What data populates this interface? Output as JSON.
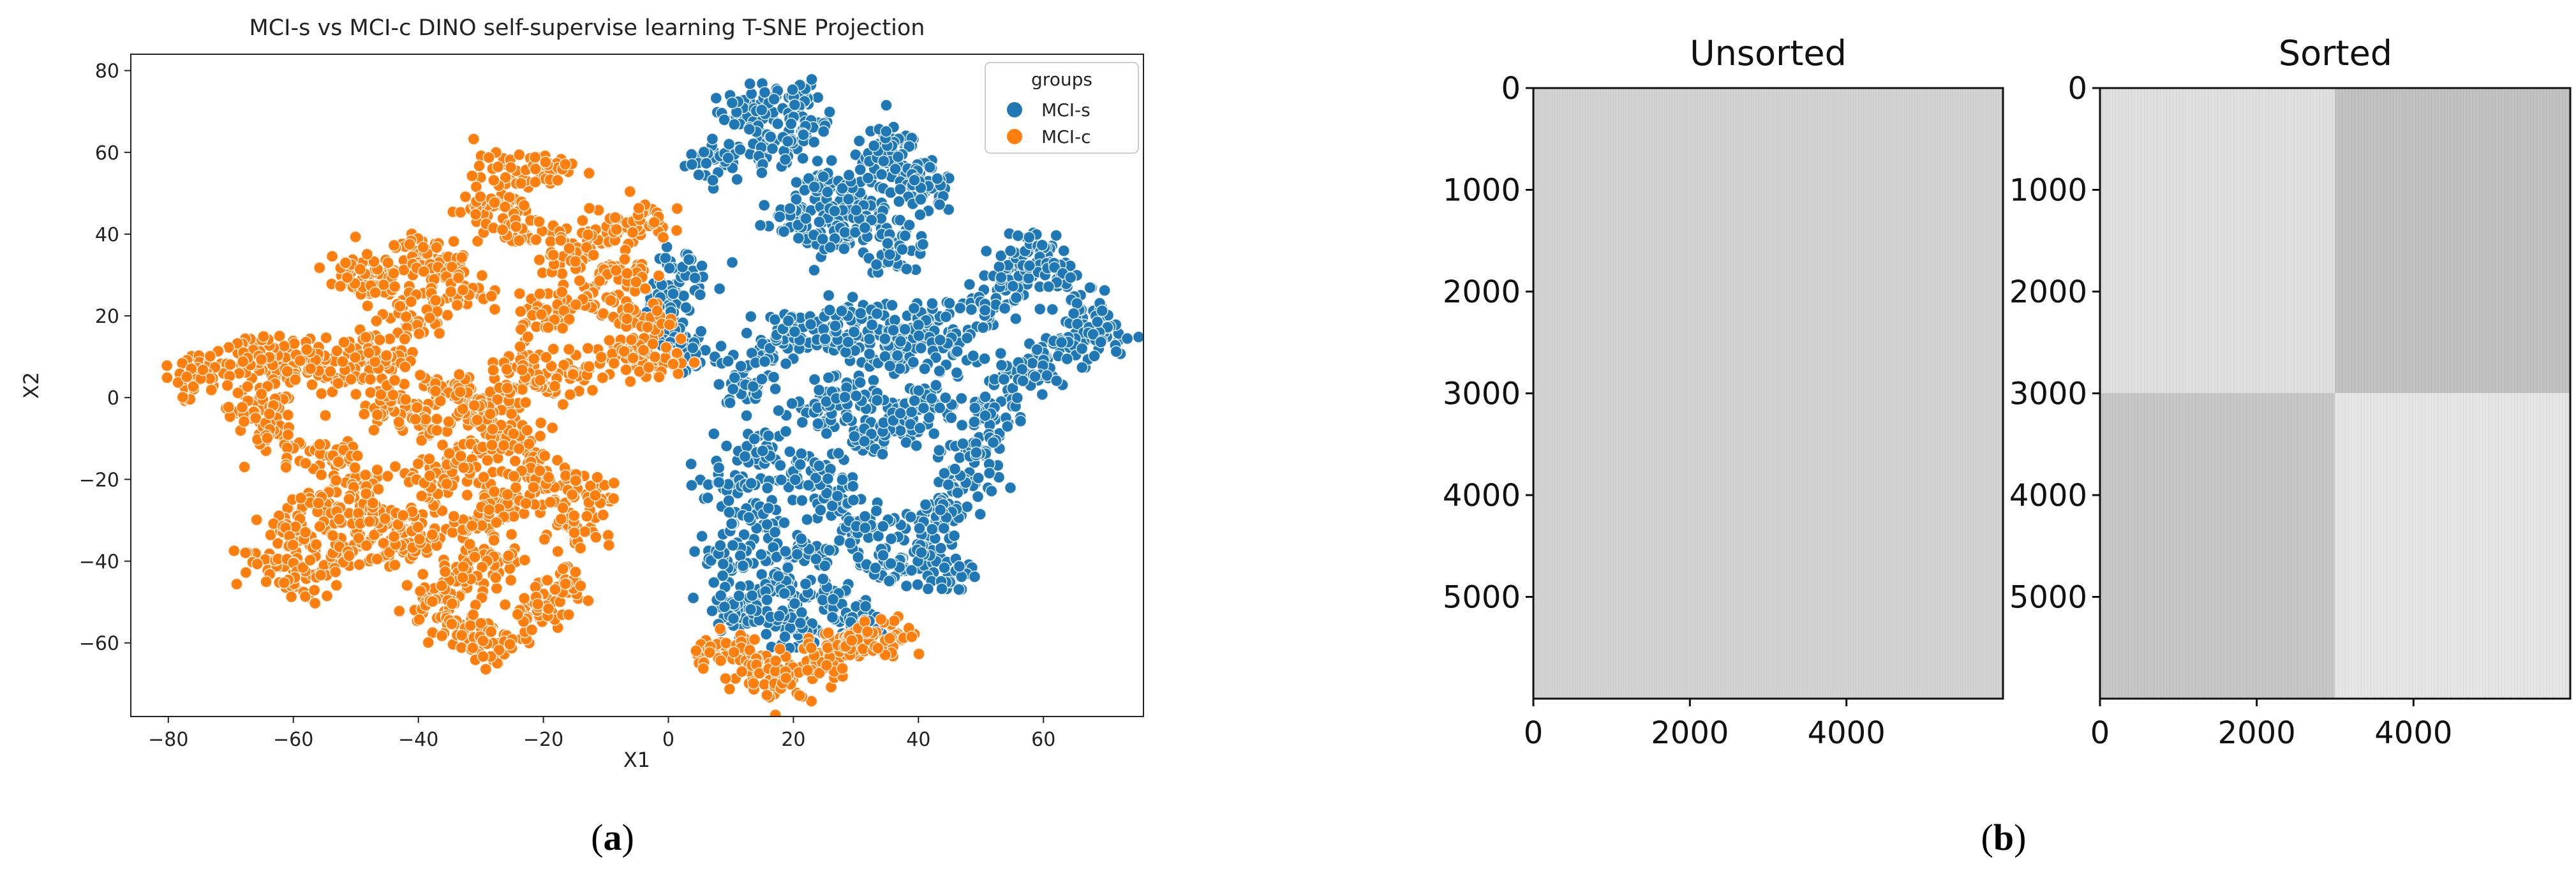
{
  "panel_a": {
    "label": "a",
    "chart_data": {
      "type": "scatter",
      "title": "MCI-s vs MCI-c DINO self-supervise learning T-SNE Projection",
      "xlabel": "X1",
      "ylabel": "X2",
      "xlim": [
        -86,
        76
      ],
      "ylim": [
        -78,
        84
      ],
      "xticks": [
        -80,
        -60,
        -40,
        -20,
        0,
        20,
        40,
        60
      ],
      "yticks": [
        -60,
        -40,
        -20,
        0,
        20,
        40,
        60,
        80
      ],
      "xtick_labels": [
        "−80",
        "−60",
        "−40",
        "−20",
        "0",
        "20",
        "40",
        "60"
      ],
      "ytick_labels": [
        "−60",
        "−40",
        "−20",
        "0",
        "20",
        "40",
        "60",
        "80"
      ],
      "legend": {
        "title": "groups",
        "placement": "top-right"
      },
      "series": [
        {
          "name": "MCI-s",
          "color": "#1f77b4",
          "cluster_centers": [
            [
              8,
              58
            ],
            [
              13,
              70
            ],
            [
              16,
              60
            ],
            [
              19,
              74
            ],
            [
              22,
              66
            ],
            [
              24,
              52
            ],
            [
              20,
              44
            ],
            [
              26,
              40
            ],
            [
              30,
              47
            ],
            [
              33,
              56
            ],
            [
              36,
              63
            ],
            [
              38,
              54
            ],
            [
              41,
              50
            ],
            [
              34,
              43
            ],
            [
              37,
              36
            ],
            [
              2,
              31
            ],
            [
              -1,
              24
            ],
            [
              1,
              14
            ],
            [
              3,
              10
            ],
            [
              13,
              3
            ],
            [
              16,
              12
            ],
            [
              20,
              17
            ],
            [
              26,
              14
            ],
            [
              30,
              20
            ],
            [
              34,
              10
            ],
            [
              38,
              14
            ],
            [
              42,
              19
            ],
            [
              45,
              12
            ],
            [
              50,
              22
            ],
            [
              55,
              30
            ],
            [
              59,
              36
            ],
            [
              63,
              29
            ],
            [
              66,
              19
            ],
            [
              70,
              15
            ],
            [
              61,
              11
            ],
            [
              56,
              5
            ],
            [
              52,
              -3
            ],
            [
              50,
              -13
            ],
            [
              47,
              -21
            ],
            [
              44,
              -28
            ],
            [
              40,
              -36
            ],
            [
              45,
              -43
            ],
            [
              35,
              -41
            ],
            [
              30,
              -33
            ],
            [
              26,
              -25
            ],
            [
              21,
              -19
            ],
            [
              14,
              -13
            ],
            [
              10,
              -21
            ],
            [
              14,
              -30
            ],
            [
              11,
              -39
            ],
            [
              17,
              -46
            ],
            [
              22,
              -38
            ],
            [
              26,
              -49
            ],
            [
              21,
              -57
            ],
            [
              14,
              -53
            ],
            [
              10,
              -50
            ],
            [
              30,
              -55
            ],
            [
              32,
              -9
            ],
            [
              37,
              -6
            ],
            [
              42,
              -1
            ],
            [
              24,
              -4
            ],
            [
              28,
              1
            ]
          ]
        },
        {
          "name": "MCI-c",
          "color": "#ff7f0e",
          "cluster_centers": [
            [
              -26,
              54
            ],
            [
              -20,
              56
            ],
            [
              -30,
              46
            ],
            [
              -40,
              36
            ],
            [
              -46,
              28
            ],
            [
              -51,
              30
            ],
            [
              -36,
              32
            ],
            [
              -34,
              26
            ],
            [
              -41,
              20
            ],
            [
              -45,
              10
            ],
            [
              -23,
              42
            ],
            [
              -16,
              35
            ],
            [
              -10,
              40
            ],
            [
              -5,
              44
            ],
            [
              -8,
              30
            ],
            [
              -13,
              24
            ],
            [
              -20,
              20
            ],
            [
              -4,
              18
            ],
            [
              -2,
              8
            ],
            [
              -7,
              11
            ],
            [
              -15,
              5
            ],
            [
              -22,
              6
            ],
            [
              -27,
              0
            ],
            [
              -31,
              -5
            ],
            [
              -35,
              2
            ],
            [
              -40,
              -5
            ],
            [
              -45,
              0
            ],
            [
              -48,
              10
            ],
            [
              -53,
              6
            ],
            [
              -58,
              10
            ],
            [
              -62,
              6
            ],
            [
              -66,
              11
            ],
            [
              -71,
              8
            ],
            [
              -76,
              4
            ],
            [
              -66,
              -2
            ],
            [
              -62,
              -10
            ],
            [
              -54,
              -14
            ],
            [
              -50,
              -21
            ],
            [
              -56,
              -26
            ],
            [
              -60,
              -33
            ],
            [
              -64,
              -41
            ],
            [
              -58,
              -44
            ],
            [
              -51,
              -37
            ],
            [
              -44,
              -38
            ],
            [
              -40,
              -31
            ],
            [
              -46,
              -28
            ],
            [
              -38,
              -20
            ],
            [
              -32,
              -15
            ],
            [
              -25,
              -11
            ],
            [
              -20,
              -19
            ],
            [
              -26,
              -24
            ],
            [
              -30,
              -30
            ],
            [
              -28,
              -39
            ],
            [
              -33,
              -44
            ],
            [
              -37,
              -50
            ],
            [
              -33,
              -57
            ],
            [
              -28,
              -61
            ],
            [
              -21,
              -52
            ],
            [
              -18,
              -47
            ],
            [
              -15,
              -33
            ],
            [
              -14,
              -24
            ],
            [
              8,
              -62
            ],
            [
              14,
              -65
            ],
            [
              18,
              -69
            ],
            [
              25,
              -64
            ],
            [
              30,
              -60
            ],
            [
              35,
              -58
            ]
          ]
        }
      ]
    }
  },
  "panel_b": {
    "label": "b",
    "chart_data": [
      {
        "type": "heatmap",
        "title": "Unsorted",
        "xlim": [
          0,
          6000
        ],
        "ylim": [
          6000,
          0
        ],
        "xticks": [
          0,
          2000,
          4000
        ],
        "yticks": [
          0,
          1000,
          2000,
          3000,
          4000,
          5000
        ],
        "colormap": "gray",
        "values": [
          [
            0.84,
            0.84
          ],
          [
            0.84,
            0.84
          ]
        ]
      },
      {
        "type": "heatmap",
        "title": "Sorted",
        "xlim": [
          0,
          6000
        ],
        "ylim": [
          6000,
          0
        ],
        "xticks": [
          0,
          2000,
          4000
        ],
        "yticks": [
          0,
          1000,
          2000,
          3000,
          4000,
          5000
        ],
        "colormap": "gray",
        "block_boundary": 3000,
        "values": [
          [
            0.88,
            0.76
          ],
          [
            0.78,
            0.9
          ]
        ]
      }
    ]
  }
}
